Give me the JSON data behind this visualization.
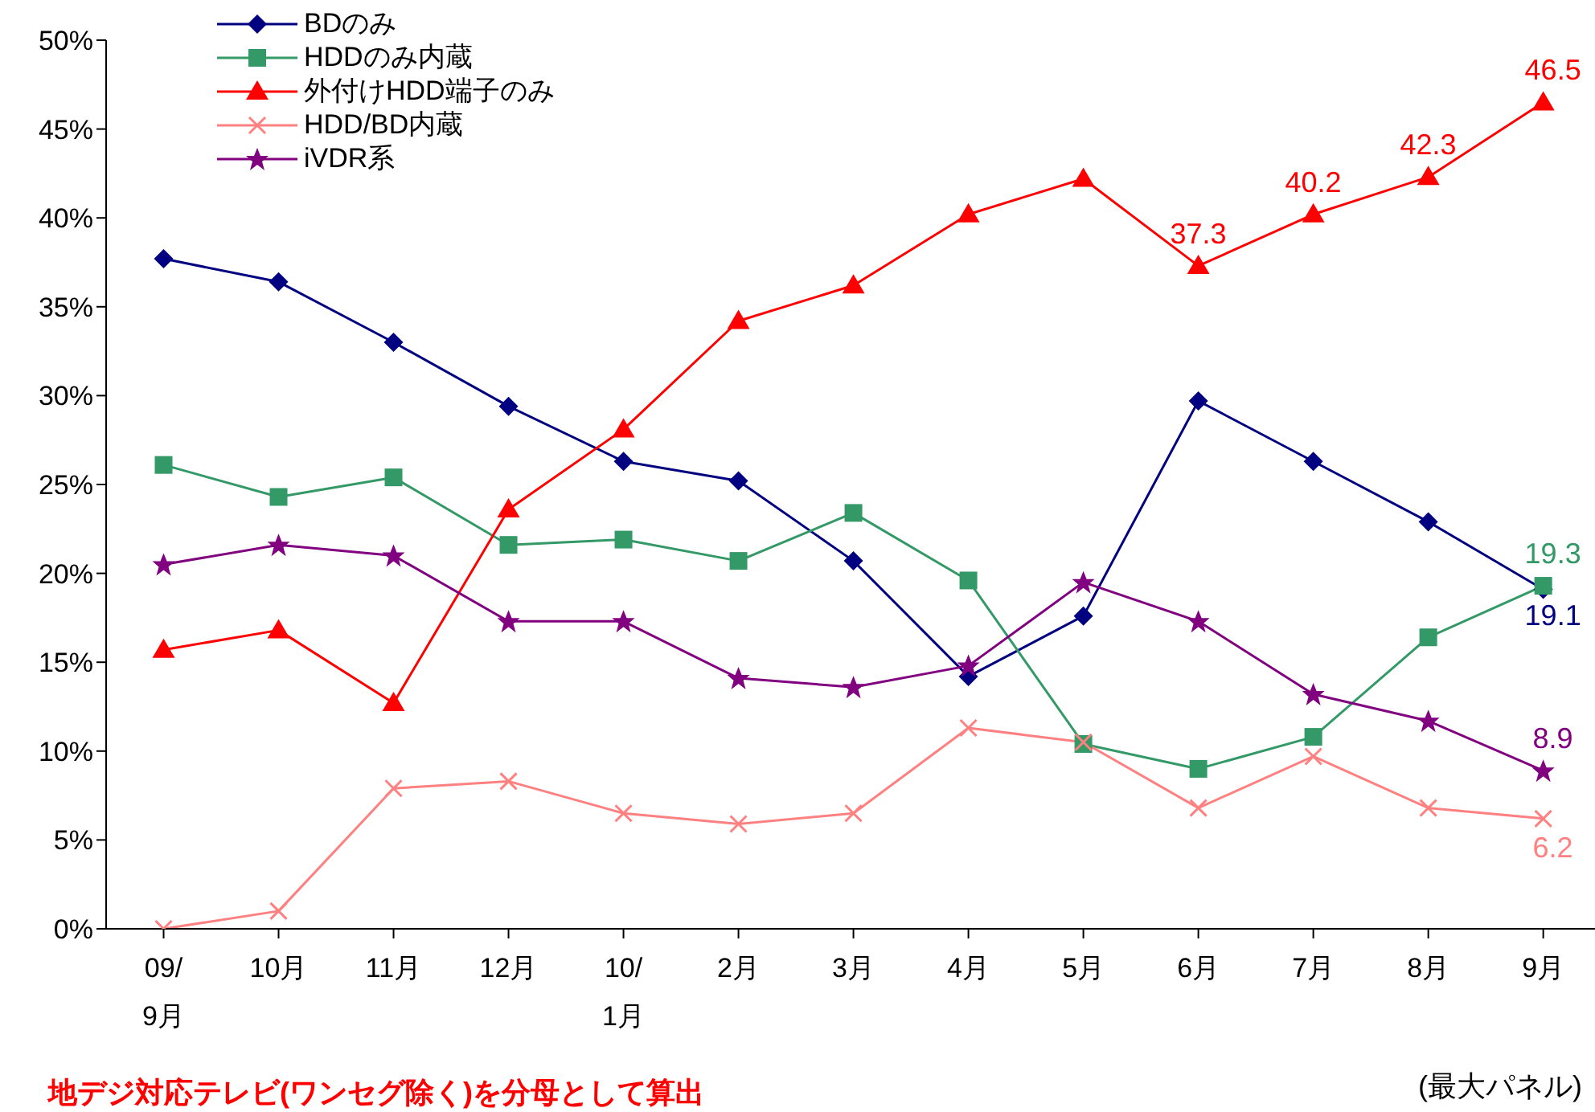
{
  "chart_data": {
    "type": "line",
    "categories": [
      "09/\n9月",
      "10月",
      "11月",
      "12月",
      "10/\n1月",
      "2月",
      "3月",
      "4月",
      "5月",
      "6月",
      "7月",
      "8月",
      "9月"
    ],
    "series": [
      {
        "name": "BDのみ",
        "color": "#000080",
        "marker": "diamond",
        "values": [
          37.7,
          36.4,
          33.0,
          29.4,
          26.3,
          25.2,
          20.7,
          14.2,
          17.6,
          29.7,
          26.3,
          22.9,
          19.1
        ],
        "value_labels": [
          null,
          null,
          null,
          null,
          null,
          null,
          null,
          null,
          null,
          null,
          null,
          null,
          "19.1"
        ]
      },
      {
        "name": "HDDのみ内蔵",
        "color": "#339966",
        "marker": "square",
        "values": [
          26.1,
          24.3,
          25.4,
          21.6,
          21.9,
          20.7,
          23.4,
          19.6,
          10.4,
          9.0,
          10.8,
          16.4,
          19.3
        ],
        "value_labels": [
          null,
          null,
          null,
          null,
          null,
          null,
          null,
          null,
          null,
          null,
          null,
          null,
          "19.3"
        ]
      },
      {
        "name": "外付けHDD端子のみ",
        "color": "#ff0000",
        "marker": "triangle",
        "values": [
          15.7,
          16.8,
          12.7,
          23.6,
          28.1,
          34.2,
          36.2,
          40.2,
          42.2,
          37.3,
          40.2,
          42.3,
          46.5
        ],
        "value_labels": [
          null,
          null,
          null,
          null,
          null,
          null,
          null,
          null,
          null,
          "37.3",
          "40.2",
          "42.3",
          "46.5"
        ]
      },
      {
        "name": "HDD/BD内蔵",
        "color": "#ff8080",
        "marker": "cross",
        "values": [
          0,
          1.0,
          7.9,
          8.3,
          6.5,
          5.9,
          6.5,
          11.3,
          10.5,
          6.8,
          9.7,
          6.8,
          6.2
        ],
        "value_labels": [
          null,
          null,
          null,
          null,
          null,
          null,
          null,
          null,
          null,
          null,
          null,
          null,
          "6.2"
        ]
      },
      {
        "name": "iVDR系",
        "color": "#800080",
        "marker": "star",
        "values": [
          20.5,
          21.6,
          21.0,
          17.3,
          17.3,
          14.1,
          13.6,
          14.8,
          19.5,
          17.3,
          13.2,
          11.7,
          8.9
        ],
        "value_labels": [
          null,
          null,
          null,
          null,
          null,
          null,
          null,
          null,
          null,
          null,
          null,
          null,
          "8.9"
        ]
      }
    ],
    "ylim": [
      0,
      50
    ],
    "yticks": [
      {
        "value": 0,
        "label": "0%"
      },
      {
        "value": 5,
        "label": "5%"
      },
      {
        "value": 10,
        "label": "10%"
      },
      {
        "value": 15,
        "label": "15%"
      },
      {
        "value": 20,
        "label": "20%"
      },
      {
        "value": 25,
        "label": "25%"
      },
      {
        "value": 30,
        "label": "30%"
      },
      {
        "value": 35,
        "label": "35%"
      },
      {
        "value": 40,
        "label": "40%"
      },
      {
        "value": 45,
        "label": "45%"
      },
      {
        "value": 50,
        "label": "50%"
      }
    ],
    "grid": false,
    "legend": "top left",
    "line_style": "solid",
    "annotations": [
      "地デジ対応テレビ(ワンセグ除く)を分母として算出",
      "(最大パネル)"
    ]
  }
}
